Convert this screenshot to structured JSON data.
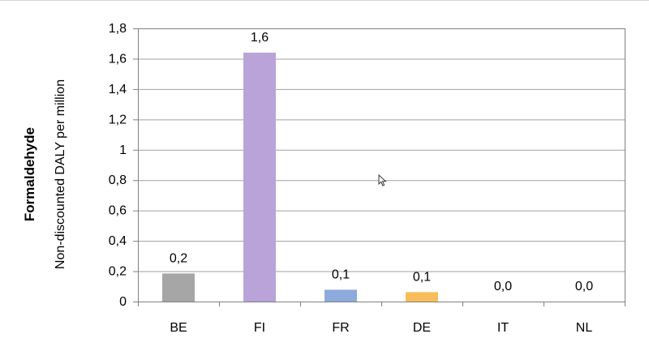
{
  "chart_data": {
    "type": "bar",
    "title": "",
    "ylabel_title": "Formaldehyde",
    "ylabel": "Non-discounted DALY per million",
    "xlabel": "",
    "categories": [
      "BE",
      "FI",
      "FR",
      "DE",
      "IT",
      "NL"
    ],
    "values": [
      0.185,
      1.64,
      0.078,
      0.062,
      0.0,
      0.0
    ],
    "data_labels": [
      "0,2",
      "1,6",
      "0,1",
      "0,1",
      "0,0",
      "0,0"
    ],
    "colors": [
      "#a6a6a6",
      "#b9a3d9",
      "#8eaadb",
      "#f7bd5b",
      "#bfbfbf",
      "#bfbfbf"
    ],
    "ylim": [
      0,
      1.8
    ],
    "yticks": [
      0,
      0.2,
      0.4,
      0.6,
      0.8,
      1,
      1.2,
      1.4,
      1.6,
      1.8
    ],
    "ytick_labels": [
      "0",
      "0,2",
      "0,4",
      "0,6",
      "0,8",
      "1",
      "1,2",
      "1,4",
      "1,6",
      "1,8"
    ],
    "grid": true,
    "legend": "none"
  }
}
